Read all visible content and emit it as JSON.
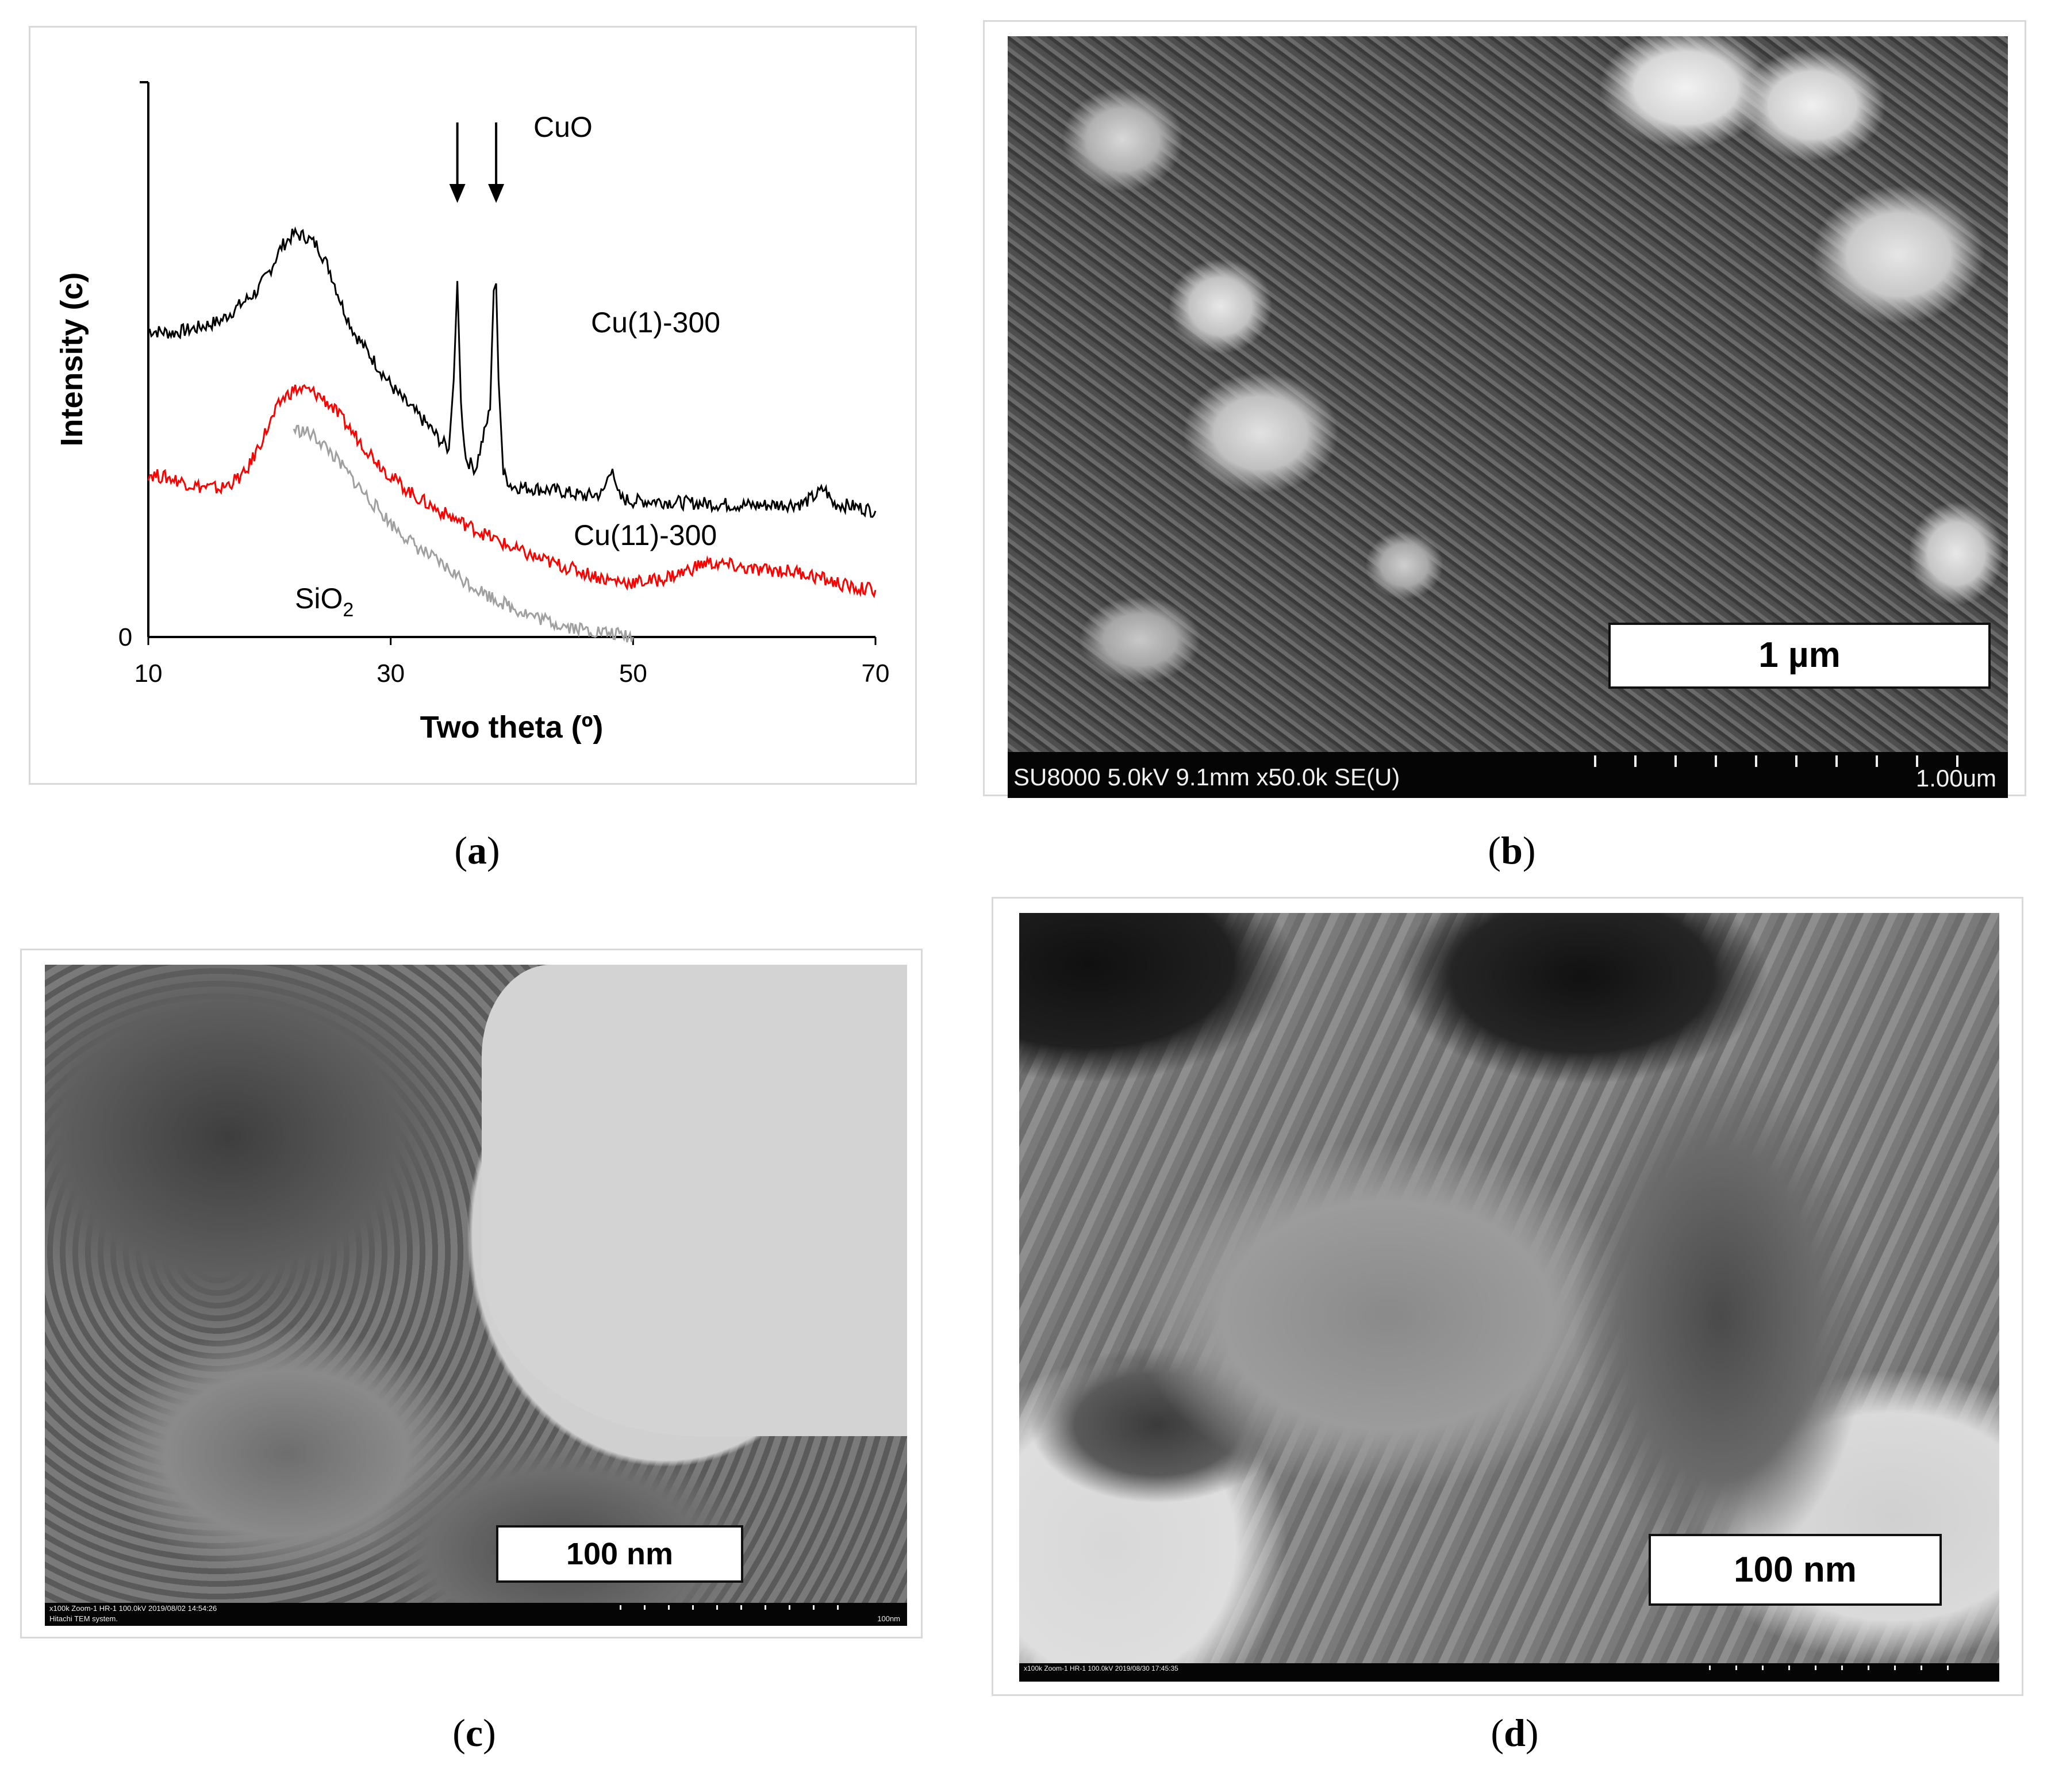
{
  "captions": {
    "a": "a",
    "b": "b",
    "c": "c",
    "d": "d"
  },
  "chart_data": {
    "type": "line",
    "title": "",
    "xlabel": "Two theta (º)",
    "ylabel": "Intensity (c)",
    "xlim": [
      10,
      70
    ],
    "xticks": [
      "10",
      "30",
      "50",
      "70"
    ],
    "ytick_zero": "0",
    "grid": false,
    "legend": "none",
    "annotations": {
      "peak_label": "CuO",
      "peak_positions": [
        35.5,
        38.7
      ],
      "label_cu1": "Cu(1)-300",
      "label_cu11": "Cu(11)-300",
      "label_sio2_main": "SiO",
      "label_sio2_sub": "2"
    },
    "series": [
      {
        "name": "Cu(1)-300",
        "color": "#000000",
        "x": [
          10,
          12,
          14,
          16,
          18,
          19,
          20,
          21,
          22,
          23,
          24,
          25,
          26,
          27,
          28,
          29,
          30,
          31,
          32,
          33,
          34,
          34.8,
          35.2,
          35.5,
          35.8,
          36.2,
          37,
          38.2,
          38.5,
          38.7,
          38.9,
          39.3,
          40,
          42,
          44,
          46,
          47.5,
          48.3,
          48.6,
          49,
          50,
          52,
          54,
          56,
          58,
          60,
          62,
          64,
          65,
          65.8,
          66.5,
          68,
          70
        ],
        "y": [
          620,
          615,
          625,
          640,
          680,
          700,
          740,
          790,
          815,
          810,
          790,
          740,
          670,
          615,
          580,
          545,
          510,
          480,
          455,
          430,
          400,
          380,
          520,
          720,
          470,
          360,
          340,
          460,
          710,
          715,
          520,
          330,
          305,
          300,
          295,
          285,
          290,
          350,
          295,
          280,
          275,
          275,
          272,
          270,
          268,
          266,
          268,
          270,
          285,
          300,
          270,
          265,
          255
        ]
      },
      {
        "name": "Cu(11)-300",
        "color": "#ff0000",
        "x": [
          10,
          12,
          14,
          16,
          18,
          20,
          21,
          22,
          23,
          24,
          25,
          26,
          28,
          30,
          32,
          34,
          36,
          38,
          40,
          42,
          44,
          46,
          48,
          50,
          52,
          54,
          56,
          58,
          60,
          62,
          64,
          66,
          68,
          70
        ],
        "y": [
          330,
          320,
          305,
          300,
          330,
          430,
          480,
          500,
          500,
          490,
          470,
          440,
          380,
          325,
          285,
          255,
          230,
          205,
          180,
          160,
          145,
          130,
          115,
          110,
          115,
          130,
          150,
          145,
          135,
          135,
          130,
          115,
          100,
          95
        ]
      },
      {
        "name": "SiO2",
        "color": "#a0a0a0",
        "x": [
          22,
          23,
          24,
          25,
          26,
          28,
          30,
          32,
          34,
          36,
          38,
          40,
          42,
          44,
          46,
          48,
          50
        ],
        "y": [
          420,
          415,
          400,
          375,
          345,
          285,
          230,
          185,
          150,
          115,
          85,
          60,
          40,
          25,
          15,
          8,
          0
        ]
      }
    ]
  },
  "sem_b": {
    "scale_label": "1 µm",
    "info_left": "SU8000 5.0kV 9.1mm x50.0k SE(U)",
    "info_right": "1.00um"
  },
  "tem_c": {
    "scale_label": "100 nm",
    "info_line1": "x100k Zoom-1 HR-1 100.0kV 2019/08/02 14:54:26",
    "info_line2": "Hitachi TEM system.",
    "info_right": "100nm"
  },
  "tem_d": {
    "scale_label": "100 nm",
    "info_line1": "x100k Zoom-1 HR-1 100.0kV 2019/08/30 17:45:35"
  }
}
